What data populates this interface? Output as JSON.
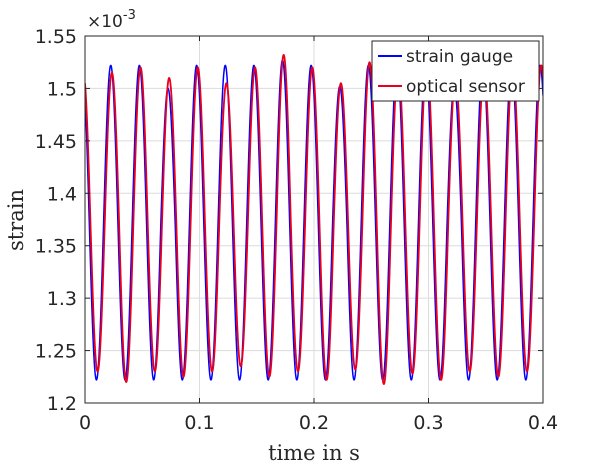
{
  "chart_data": {
    "type": "line",
    "title": "",
    "xlabel": "time in s",
    "ylabel": "strain",
    "xlim": [
      0,
      0.4
    ],
    "ylim": [
      1.2,
      1.55
    ],
    "y_scale_label": "×10-3",
    "y_scale_base": "×10",
    "y_scale_exponent": "-3",
    "grid": true,
    "legend_position": "top-right",
    "x_ticks": [
      0,
      0.1,
      0.2,
      0.3,
      0.4
    ],
    "x_tick_labels": [
      "0",
      "0.1",
      "0.2",
      "0.3",
      "0.4"
    ],
    "y_ticks": [
      1.2,
      1.25,
      1.3,
      1.35,
      1.4,
      1.45,
      1.5,
      1.55
    ],
    "y_tick_labels": [
      "1.2",
      "1.25",
      "1.3",
      "1.35",
      "1.4",
      "1.45",
      "1.5",
      "1.55"
    ],
    "series": [
      {
        "name": "strain gauge",
        "color": "#0000ff",
        "frequency_hz": 40,
        "mean": 1.372,
        "amplitude": 0.15,
        "phase_time_s": 0.0225,
        "peak_times_s": [
          0.0225,
          0.0475,
          0.0725,
          0.0975,
          0.1225,
          0.1475,
          0.1725,
          0.1975,
          0.2225,
          0.2475,
          0.2725,
          0.2975,
          0.3225,
          0.3475,
          0.3725,
          0.3975
        ],
        "peak_values": [
          1.522,
          1.522,
          1.5,
          1.522,
          1.522,
          1.522,
          1.527,
          1.522,
          1.502,
          1.522,
          1.522,
          1.522,
          1.502,
          1.522,
          1.522,
          1.522
        ],
        "trough_times_s": [
          0.01,
          0.035,
          0.06,
          0.085,
          0.11,
          0.135,
          0.16,
          0.185,
          0.21,
          0.235,
          0.26,
          0.285,
          0.31,
          0.335,
          0.36,
          0.385
        ],
        "trough_values": [
          1.222,
          1.222,
          1.222,
          1.222,
          1.222,
          1.222,
          1.222,
          1.222,
          1.222,
          1.222,
          1.222,
          1.222,
          1.222,
          1.222,
          1.222,
          1.222
        ]
      },
      {
        "name": "optical sensor",
        "color": "#e8001c",
        "frequency_hz": 40,
        "mean": 1.372,
        "amplitude": 0.15,
        "phase_time_s": 0.0235,
        "peak_times_s": [
          0.0235,
          0.0485,
          0.0735,
          0.0985,
          0.1235,
          0.1485,
          0.1735,
          0.1985,
          0.2235,
          0.2485,
          0.2735,
          0.2985,
          0.3235,
          0.3485,
          0.3735,
          0.3985
        ],
        "peak_values": [
          1.515,
          1.52,
          1.51,
          1.52,
          1.505,
          1.52,
          1.532,
          1.52,
          1.505,
          1.525,
          1.52,
          1.525,
          1.51,
          1.515,
          1.52,
          1.522
        ],
        "trough_times_s": [
          0.011,
          0.036,
          0.061,
          0.086,
          0.111,
          0.136,
          0.161,
          0.186,
          0.211,
          0.236,
          0.261,
          0.286,
          0.311,
          0.336,
          0.361,
          0.386
        ],
        "trough_values": [
          1.23,
          1.22,
          1.23,
          1.225,
          1.23,
          1.235,
          1.225,
          1.23,
          1.222,
          1.232,
          1.218,
          1.228,
          1.222,
          1.23,
          1.225,
          1.23
        ]
      }
    ]
  }
}
